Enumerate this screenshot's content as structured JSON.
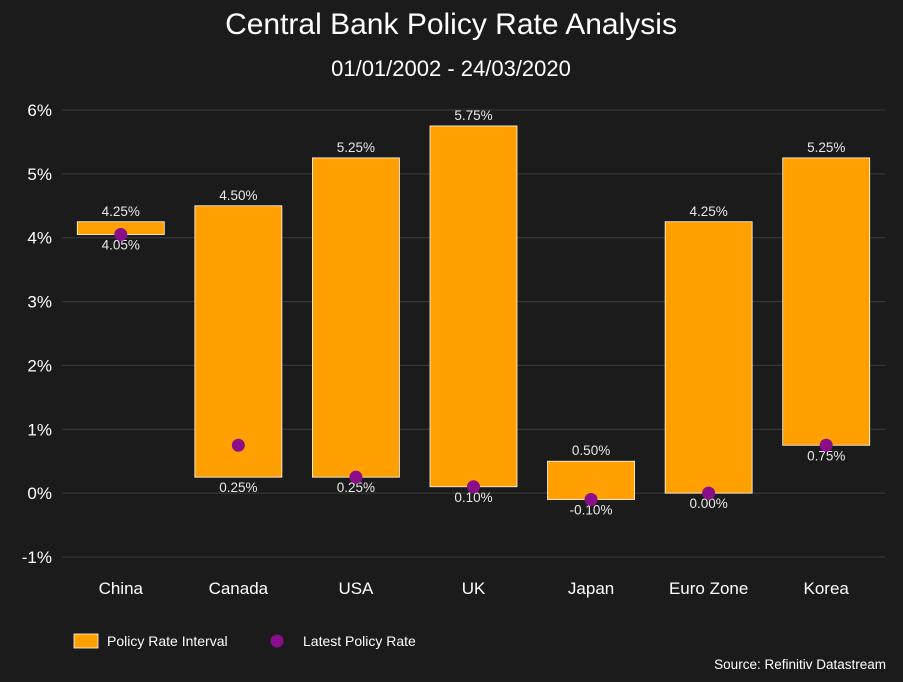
{
  "chart_data": {
    "type": "bar",
    "title": "Central Bank Policy Rate Analysis",
    "subtitle": "01/01/2002 - 24/03/2020",
    "categories": [
      "China",
      "Canada",
      "USA",
      "UK",
      "Japan",
      "Euro Zone",
      "Korea"
    ],
    "series": [
      {
        "name": "Policy Rate Interval",
        "kind": "floating-bar",
        "low": [
          4.05,
          0.25,
          0.25,
          0.1,
          -0.1,
          0.0,
          0.75
        ],
        "high": [
          4.25,
          4.5,
          5.25,
          5.75,
          0.5,
          4.25,
          5.25
        ],
        "low_labels": [
          "4.05%",
          "0.25%",
          "0.25%",
          "0.10%",
          "-0.10%",
          "0.00%",
          "0.75%"
        ],
        "high_labels": [
          "4.25%",
          "4.50%",
          "5.25%",
          "5.75%",
          "0.50%",
          "4.25%",
          "5.25%"
        ],
        "color": "#ff9f00"
      },
      {
        "name": "Latest Policy Rate",
        "kind": "point",
        "values": [
          4.05,
          0.75,
          0.25,
          0.1,
          -0.1,
          0.0,
          0.75
        ],
        "color": "#8a0d8a"
      }
    ],
    "ylim": [
      -1,
      6
    ],
    "yticks": [
      -1,
      0,
      1,
      2,
      3,
      4,
      5,
      6
    ],
    "ytick_labels": [
      "-1%",
      "0%",
      "1%",
      "2%",
      "3%",
      "4%",
      "5%",
      "6%"
    ],
    "grid": true,
    "legend_position": "bottom-left",
    "source": "Source: Refinitiv Datastream"
  },
  "colors": {
    "background": "#1b1b1b",
    "bar": "#ff9f00",
    "bar_border": "#ffffff",
    "point": "#8a0d8a",
    "grid": "#3d3d3d",
    "text": "#ffffff"
  }
}
